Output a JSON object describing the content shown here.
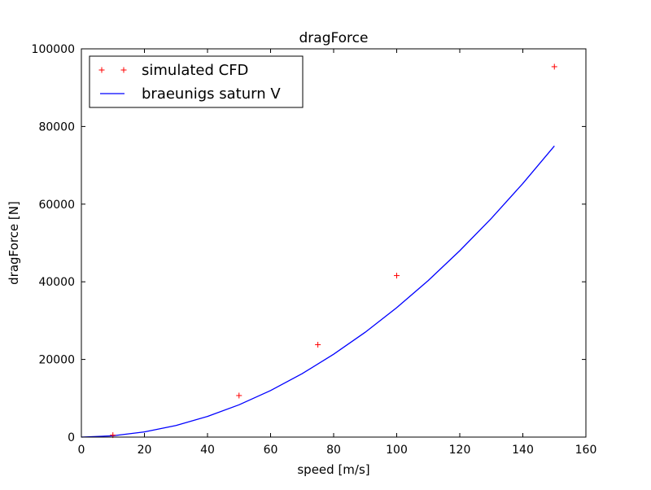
{
  "chart_data": {
    "type": "line",
    "title": "dragForce",
    "xlabel": "speed [m/s]",
    "ylabel": "dragForce [N]",
    "xlim": [
      0,
      160
    ],
    "ylim": [
      0,
      100000
    ],
    "xticks": [
      0,
      20,
      40,
      60,
      80,
      100,
      120,
      140,
      160
    ],
    "yticks": [
      0,
      20000,
      40000,
      60000,
      80000,
      100000
    ],
    "grid": false,
    "legend_position": "top-left",
    "series": [
      {
        "name": "simulated CFD",
        "kind": "scatter",
        "marker": "+",
        "color": "#ff0000",
        "x": [
          10,
          50,
          75,
          100,
          150
        ],
        "y": [
          500,
          10700,
          23800,
          41600,
          95400
        ]
      },
      {
        "name": "braeunigs saturn V",
        "kind": "line",
        "color": "#0000ff",
        "x": [
          0,
          10,
          20,
          30,
          40,
          50,
          60,
          70,
          80,
          90,
          100,
          110,
          120,
          130,
          140,
          150
        ],
        "y": [
          0,
          333,
          1333,
          3000,
          5333,
          8333,
          12000,
          16333,
          21333,
          27000,
          33333,
          40333,
          48000,
          56333,
          65333,
          75000
        ]
      }
    ]
  }
}
